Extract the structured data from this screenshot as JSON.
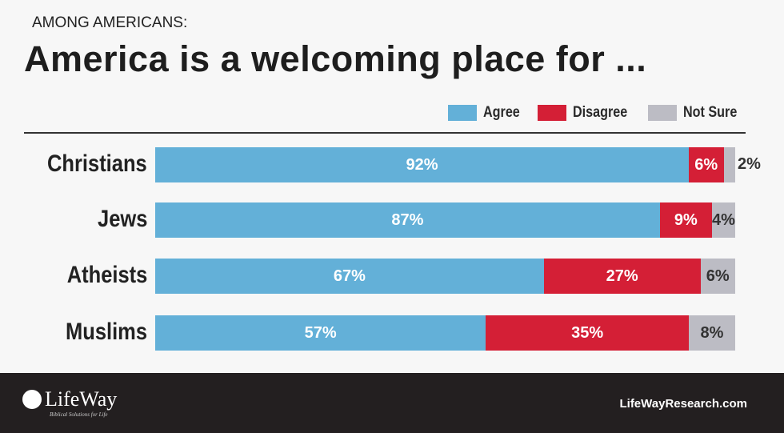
{
  "chart_data": {
    "type": "bar",
    "orientation": "horizontal-stacked",
    "subtitle": "AMONG AMERICANS:",
    "title": "America is a welcoming place for ...",
    "categories": [
      "Christians",
      "Jews",
      "Atheists",
      "Muslims"
    ],
    "series": [
      {
        "name": "Agree",
        "color": "#63b0d8",
        "values": [
          92,
          87,
          67,
          57
        ]
      },
      {
        "name": "Disagree",
        "color": "#d41f36",
        "values": [
          6,
          9,
          27,
          35
        ]
      },
      {
        "name": "Not Sure",
        "color": "#bcbcc4",
        "values": [
          2,
          4,
          6,
          8
        ]
      }
    ],
    "xlim": [
      0,
      100
    ],
    "legend": "top-right"
  },
  "footer": {
    "brand": "LifeWay",
    "tagline": "Biblical Solutions for Life",
    "site": "LifeWayResearch.com"
  }
}
